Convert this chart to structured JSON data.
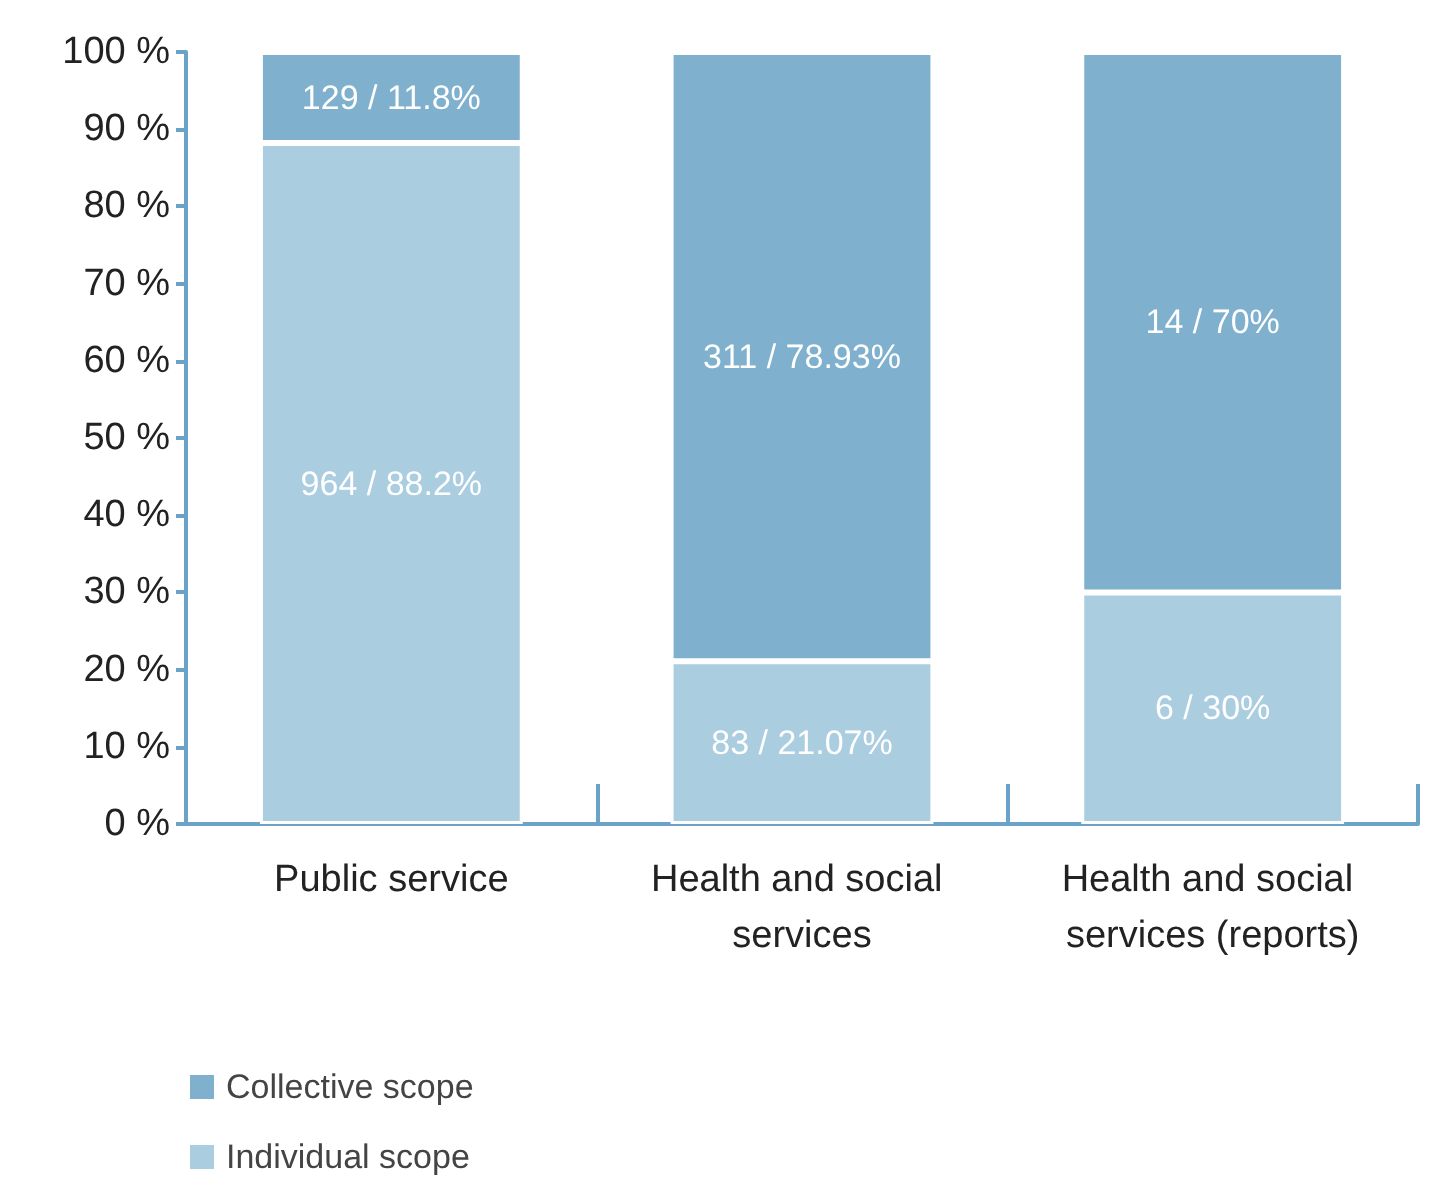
{
  "chart_data": {
    "type": "bar",
    "stacked": true,
    "categories": [
      "Public service",
      "Health and social services",
      "Health and social services (reports)"
    ],
    "series": [
      {
        "name": "Individual scope",
        "color": "#abcde0",
        "values": [
          88.2,
          21.07,
          30
        ],
        "value_labels": [
          "964 / 88.2%",
          "83 / 21.07%",
          "6 / 30%"
        ]
      },
      {
        "name": "Collective scope",
        "color": "#7fb0cd",
        "values": [
          11.8,
          78.93,
          70
        ],
        "value_labels": [
          "129 / 11.8%",
          "311 / 78.93%",
          "14 / 70%"
        ]
      }
    ],
    "ylim": [
      0,
      100
    ],
    "yticks": [
      {
        "value": 0,
        "label": "0 %"
      },
      {
        "value": 10,
        "label": "10 %"
      },
      {
        "value": 20,
        "label": "20 %"
      },
      {
        "value": 30,
        "label": "30 %"
      },
      {
        "value": 40,
        "label": "40 %"
      },
      {
        "value": 50,
        "label": "50 %"
      },
      {
        "value": 60,
        "label": "60 %"
      },
      {
        "value": 70,
        "label": "70 %"
      },
      {
        "value": 80,
        "label": "80 %"
      },
      {
        "value": 90,
        "label": "90 %"
      },
      {
        "value": 100,
        "label": "100 %"
      }
    ],
    "grid": false,
    "legend": "bottom left"
  }
}
